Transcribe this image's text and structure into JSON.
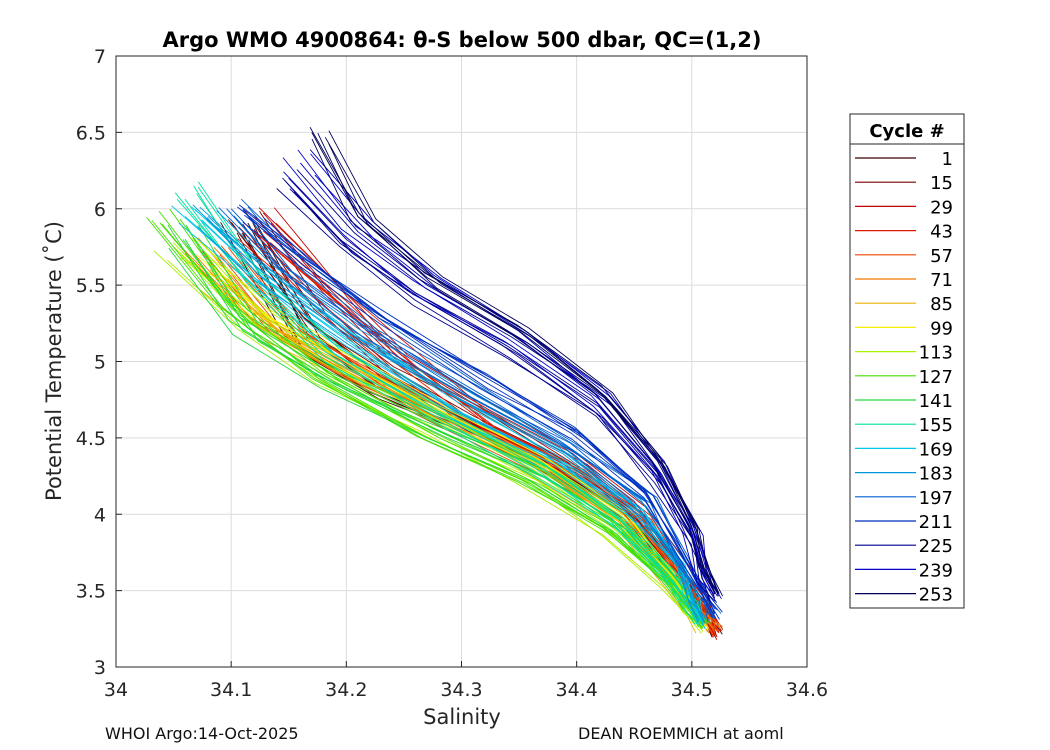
{
  "chart_data": {
    "type": "line",
    "title": "Argo WMO 4900864: θ-S below 500 dbar,  QC=(1,2)",
    "xlabel": "Salinity",
    "ylabel": "Potential Temperature (˚C)",
    "xlim": [
      34.0,
      34.6
    ],
    "ylim": [
      3.0,
      7.0
    ],
    "xticks": [
      34.0,
      34.1,
      34.2,
      34.3,
      34.4,
      34.5,
      34.6
    ],
    "xtick_labels": [
      "34",
      "34.1",
      "34.2",
      "34.3",
      "34.4",
      "34.5",
      "34.6"
    ],
    "yticks": [
      3.0,
      3.5,
      4.0,
      4.5,
      5.0,
      5.5,
      6.0,
      6.5,
      7.0
    ],
    "ytick_labels": [
      "3",
      "3.5",
      "4",
      "4.5",
      "5",
      "5.5",
      "6",
      "6.5",
      "7"
    ],
    "grid": true,
    "legend_title": "Cycle #",
    "legend_position": "right",
    "series": [
      {
        "name": "1",
        "color": "#3a0000",
        "x": [
          34.11,
          34.16,
          34.22,
          34.3,
          34.38,
          34.45,
          34.49,
          34.51,
          34.52
        ],
        "y": [
          5.85,
          5.1,
          4.8,
          4.55,
          4.25,
          3.9,
          3.55,
          3.35,
          3.2
        ]
      },
      {
        "name": "15",
        "color": "#7a0000",
        "x": [
          34.11,
          34.17,
          34.23,
          34.31,
          34.39,
          34.45,
          34.49,
          34.51,
          34.52
        ],
        "y": [
          5.9,
          5.25,
          4.9,
          4.6,
          4.3,
          3.95,
          3.58,
          3.37,
          3.22
        ]
      },
      {
        "name": "29",
        "color": "#c40000",
        "x": [
          34.12,
          34.18,
          34.24,
          34.32,
          34.39,
          34.45,
          34.49,
          34.51,
          34.52
        ],
        "y": [
          5.95,
          5.45,
          5.0,
          4.65,
          4.35,
          4.0,
          3.6,
          3.38,
          3.21
        ]
      },
      {
        "name": "43",
        "color": "#e01a00",
        "x": [
          34.12,
          34.19,
          34.25,
          34.32,
          34.4,
          34.46,
          34.49,
          34.51,
          34.52
        ],
        "y": [
          5.85,
          5.4,
          5.0,
          4.6,
          4.3,
          3.98,
          3.6,
          3.38,
          3.22
        ]
      },
      {
        "name": "57",
        "color": "#ee4400",
        "x": [
          34.09,
          34.15,
          34.22,
          34.3,
          34.38,
          34.45,
          34.49,
          34.51,
          34.52
        ],
        "y": [
          5.7,
          5.15,
          4.85,
          4.55,
          4.25,
          3.92,
          3.55,
          3.35,
          3.22
        ]
      },
      {
        "name": "71",
        "color": "#f07800",
        "x": [
          34.07,
          34.13,
          34.2,
          34.28,
          34.37,
          34.44,
          34.48,
          34.5,
          34.52
        ],
        "y": [
          5.75,
          5.25,
          4.95,
          4.65,
          4.35,
          3.98,
          3.62,
          3.4,
          3.24
        ]
      },
      {
        "name": "85",
        "color": "#e8b000",
        "x": [
          34.08,
          34.14,
          34.21,
          34.29,
          34.37,
          34.44,
          34.48,
          34.5,
          34.51
        ],
        "y": [
          5.6,
          5.2,
          4.92,
          4.62,
          4.3,
          3.95,
          3.58,
          3.38,
          3.25
        ]
      },
      {
        "name": "99",
        "color": "#f5ef00",
        "x": [
          34.07,
          34.13,
          34.2,
          34.28,
          34.37,
          34.44,
          34.48,
          34.5,
          34.51
        ],
        "y": [
          5.7,
          5.3,
          5.0,
          4.68,
          4.35,
          4.0,
          3.62,
          3.4,
          3.26
        ]
      },
      {
        "name": "113",
        "color": "#aaf000",
        "x": [
          34.05,
          34.12,
          34.19,
          34.28,
          34.36,
          34.43,
          34.48,
          34.5,
          34.51
        ],
        "y": [
          5.75,
          5.25,
          4.9,
          4.55,
          4.25,
          3.9,
          3.55,
          3.35,
          3.26
        ]
      },
      {
        "name": "127",
        "color": "#44e000",
        "x": [
          34.04,
          34.1,
          34.18,
          34.27,
          34.36,
          34.43,
          34.48,
          34.5,
          34.51
        ],
        "y": [
          5.9,
          5.35,
          4.88,
          4.5,
          4.2,
          3.88,
          3.55,
          3.36,
          3.27
        ]
      },
      {
        "name": "141",
        "color": "#22d840",
        "x": [
          34.06,
          34.11,
          34.19,
          34.28,
          34.37,
          34.44,
          34.48,
          34.5,
          34.51
        ],
        "y": [
          5.8,
          5.2,
          4.85,
          4.55,
          4.25,
          3.92,
          3.58,
          3.38,
          3.28
        ]
      },
      {
        "name": "155",
        "color": "#00e0a0",
        "x": [
          34.07,
          34.12,
          34.19,
          34.28,
          34.37,
          34.44,
          34.48,
          34.5,
          34.51
        ],
        "y": [
          6.1,
          5.55,
          5.05,
          4.65,
          4.3,
          3.95,
          3.6,
          3.4,
          3.29
        ]
      },
      {
        "name": "169",
        "color": "#00c8e8",
        "x": [
          34.06,
          34.12,
          34.2,
          34.29,
          34.38,
          34.45,
          34.49,
          34.5,
          34.51
        ],
        "y": [
          5.95,
          5.55,
          5.1,
          4.7,
          4.35,
          4.0,
          3.65,
          3.42,
          3.28
        ]
      },
      {
        "name": "183",
        "color": "#0096dc",
        "x": [
          34.08,
          34.13,
          34.21,
          34.3,
          34.39,
          34.45,
          34.49,
          34.5,
          34.51
        ],
        "y": [
          5.95,
          5.6,
          5.15,
          4.75,
          4.4,
          4.05,
          3.68,
          3.44,
          3.3
        ]
      },
      {
        "name": "197",
        "color": "#0060d0",
        "x": [
          34.1,
          34.15,
          34.22,
          34.31,
          34.39,
          34.46,
          34.49,
          34.51,
          34.52
        ],
        "y": [
          6.0,
          5.6,
          5.2,
          4.8,
          4.45,
          4.08,
          3.7,
          3.46,
          3.32
        ]
      },
      {
        "name": "211",
        "color": "#0030c0",
        "x": [
          34.11,
          34.16,
          34.23,
          34.32,
          34.4,
          34.46,
          34.49,
          34.51,
          34.52
        ],
        "y": [
          6.0,
          5.7,
          5.3,
          4.9,
          4.55,
          4.15,
          3.75,
          3.5,
          3.35
        ]
      },
      {
        "name": "225",
        "color": "#000090",
        "x": [
          34.15,
          34.2,
          34.26,
          34.34,
          34.42,
          34.47,
          34.5,
          34.51,
          34.52
        ],
        "y": [
          6.2,
          5.8,
          5.45,
          5.1,
          4.7,
          4.25,
          3.85,
          3.6,
          3.45
        ]
      },
      {
        "name": "239",
        "color": "#0000c8",
        "x": [
          34.16,
          34.21,
          34.27,
          34.35,
          34.42,
          34.47,
          34.5,
          34.51,
          34.52
        ],
        "y": [
          6.3,
          5.85,
          5.5,
          5.15,
          4.75,
          4.3,
          3.88,
          3.62,
          3.48
        ]
      },
      {
        "name": "253",
        "color": "#00005a",
        "x": [
          34.17,
          34.21,
          34.27,
          34.35,
          34.42,
          34.47,
          34.5,
          34.51,
          34.52
        ],
        "y": [
          6.5,
          5.95,
          5.55,
          5.2,
          4.8,
          4.35,
          3.92,
          3.65,
          3.48
        ]
      }
    ]
  },
  "footer": {
    "left": "WHOI Argo:14-Oct-2025",
    "right": "DEAN ROEMMICH at aoml"
  }
}
